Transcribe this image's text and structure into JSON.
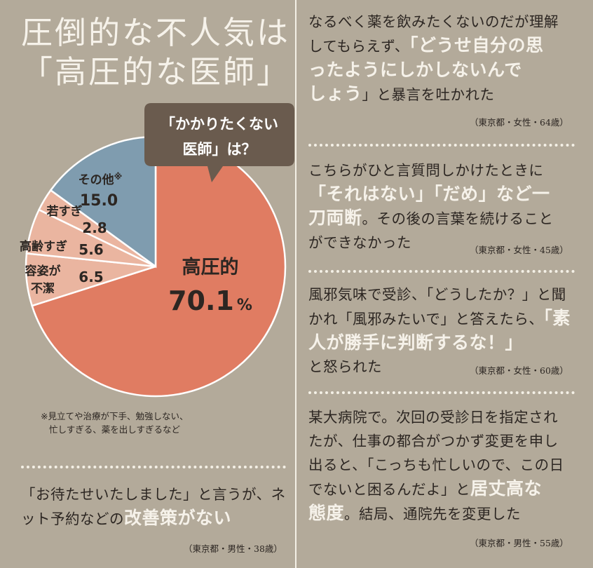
{
  "title": {
    "line1": "圧倒的な不人気は",
    "line2": "「高圧的な医師」"
  },
  "chart_data": {
    "type": "pie",
    "title": "「かかりたくない医師」は？",
    "callout": {
      "line1": "「かかりたくない",
      "line2": "医師」は？"
    },
    "slices": [
      {
        "label": "高圧的",
        "value": 70.1,
        "value_text": "70.1",
        "unit": "%",
        "color": "#e07c62"
      },
      {
        "label": "容姿が不潔",
        "value": 6.5,
        "value_text": "6.5",
        "color": "#eab5a0"
      },
      {
        "label": "高齢すぎ",
        "value": 5.6,
        "value_text": "5.6",
        "color": "#eab5a0"
      },
      {
        "label": "若すぎ",
        "value": 2.8,
        "value_text": "2.8",
        "color": "#eab5a0"
      },
      {
        "label": "その他",
        "mark": "※",
        "value": 15.0,
        "value_text": "15.0",
        "color": "#7f9caf"
      }
    ]
  },
  "note": {
    "line1": "※見立てや治療が下手、勉強しない、",
    "line2": "忙しすぎる、薬を出しすぎるなど"
  },
  "quotes": [
    {
      "a": "なるべく薬を飲みたくないのだが理解",
      "b": "してもらえず、",
      "c": "「どうせ自分の思",
      "d": "ったようにしかしないんで",
      "e": "しょう",
      "f": "」と暴言を吐かれた",
      "source": "（東京都・女性・64歳）"
    },
    {
      "a": "こちらがひと言質問しかけたときに",
      "b": "「それはない」「だめ」など一",
      "c": "刀両断",
      "d": "。その後の言葉を続けること",
      "e": "ができなかった",
      "source": "（東京都・女性・45歳）"
    },
    {
      "a": "風邪気味で受診、「どうしたか？」と聞",
      "b": "かれ「風邪みたいで」と答えたら、",
      "c": "「素",
      "d": "人が勝手に判断するな！」",
      "e": "と怒られた",
      "source": "（東京都・女性・60歳）"
    },
    {
      "a": "某大病院で。次回の受診日を指定され",
      "b": "たが、仕事の都合がつかず変更を申し",
      "c": "出ると、「こっちも忙しいので、この日",
      "d": "でないと困るんだよ」と",
      "e": "居丈高な",
      "f": "態度",
      "g": "。結局、通院先を変更した",
      "source": "（東京都・男性・55歳）"
    },
    {
      "a": "「お待たせいたしました」と言うが、ネ",
      "b": "ット予約などの",
      "c": "改善策がない",
      "source": "（東京都・男性・38歳）"
    }
  ]
}
